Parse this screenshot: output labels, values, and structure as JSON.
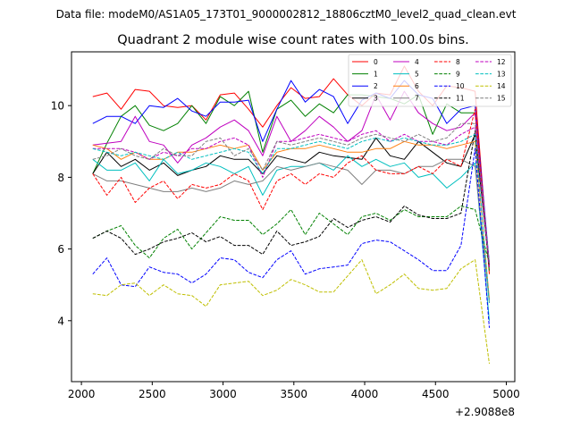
{
  "chart_data": {
    "type": "line",
    "suptitle": "Data file: modeM0/AS1A05_173T01_9000002812_18806cztM0_level2_quad_clean.evt",
    "title": "Quadrant 2 module wise count rates with 100.0s bins.",
    "xlabel": "",
    "ylabel": "",
    "x_offset_label": "+2.9088e8",
    "xlim": [
      1930,
      5060
    ],
    "ylim": [
      2.3,
      11.5
    ],
    "x_ticks": [
      2000,
      2500,
      3000,
      3500,
      4000,
      4500,
      5000
    ],
    "x_tick_labels": [
      "2000",
      "2500",
      "3000",
      "3500",
      "4000",
      "4500",
      "5000"
    ],
    "y_ticks": [
      4,
      6,
      8,
      10
    ],
    "y_tick_labels": [
      "4",
      "6",
      "8",
      "10"
    ],
    "grid": false,
    "legend_placement": "top-right",
    "x": [
      2080,
      2180,
      2280,
      2380,
      2480,
      2580,
      2680,
      2780,
      2880,
      2980,
      3080,
      3180,
      3280,
      3380,
      3480,
      3580,
      3680,
      3780,
      3880,
      3980,
      4080,
      4180,
      4280,
      4380,
      4480,
      4580,
      4680,
      4780,
      4880
    ],
    "series": [
      {
        "name": "0",
        "color": "#ff0000",
        "dash": "solid",
        "values": [
          10.25,
          10.35,
          9.9,
          10.45,
          10.4,
          10.0,
          9.95,
          10.0,
          9.6,
          10.3,
          10.35,
          9.9,
          9.4,
          10.0,
          10.5,
          10.2,
          10.25,
          10.75,
          10.3,
          10.0,
          10.35,
          10.3,
          11.1,
          10.4,
          10.0,
          10.55,
          10.5,
          10.4,
          5.3
        ]
      },
      {
        "name": "1",
        "color": "#008000",
        "dash": "solid",
        "values": [
          8.1,
          8.95,
          9.7,
          10.0,
          9.45,
          9.3,
          9.5,
          10.0,
          9.5,
          10.25,
          10.0,
          10.4,
          8.7,
          9.9,
          10.15,
          9.7,
          10.05,
          9.8,
          10.3,
          10.3,
          10.25,
          10.2,
          10.05,
          10.3,
          9.2,
          10.05,
          9.8,
          9.8,
          5.4
        ]
      },
      {
        "name": "2",
        "color": "#0000ff",
        "dash": "solid",
        "values": [
          9.5,
          9.7,
          9.7,
          9.5,
          10.0,
          9.95,
          10.2,
          9.85,
          9.7,
          10.1,
          10.1,
          10.15,
          9.0,
          9.9,
          10.7,
          10.1,
          10.45,
          10.25,
          9.5,
          10.15,
          10.35,
          10.2,
          10.7,
          10.3,
          10.2,
          9.5,
          9.9,
          10.0,
          5.6
        ]
      },
      {
        "name": "3",
        "color": "#000000",
        "dash": "solid",
        "values": [
          8.1,
          8.7,
          8.3,
          8.5,
          8.2,
          8.4,
          8.05,
          8.2,
          8.3,
          8.6,
          8.5,
          8.5,
          8.1,
          8.6,
          8.5,
          8.4,
          8.7,
          8.6,
          8.55,
          8.5,
          9.1,
          8.6,
          8.5,
          9.0,
          8.7,
          8.4,
          8.3,
          9.2,
          5.5
        ]
      },
      {
        "name": "4",
        "color": "#bf00bf",
        "dash": "solid",
        "values": [
          8.9,
          8.95,
          9.0,
          9.7,
          9.0,
          8.9,
          8.4,
          8.9,
          9.1,
          9.4,
          9.6,
          9.3,
          8.6,
          9.7,
          9.0,
          9.3,
          9.7,
          9.4,
          9.0,
          9.3,
          10.3,
          9.6,
          10.4,
          9.8,
          9.5,
          9.3,
          9.4,
          9.8,
          5.5
        ]
      },
      {
        "name": "5",
        "color": "#00bfbf",
        "dash": "solid",
        "values": [
          8.5,
          8.2,
          8.2,
          8.4,
          7.9,
          8.5,
          8.1,
          8.2,
          8.4,
          8.3,
          8.1,
          8.3,
          7.5,
          8.2,
          8.3,
          8.3,
          8.4,
          8.2,
          8.6,
          8.3,
          8.5,
          8.3,
          8.4,
          8.0,
          8.1,
          7.7,
          8.0,
          8.4,
          4.0
        ]
      },
      {
        "name": "6",
        "color": "#ff7f0e",
        "dash": "solid",
        "values": [
          8.9,
          8.8,
          8.5,
          8.7,
          8.5,
          8.5,
          8.7,
          8.7,
          8.8,
          8.9,
          8.8,
          8.9,
          8.2,
          8.7,
          8.8,
          8.8,
          8.9,
          8.8,
          8.7,
          8.7,
          8.8,
          8.8,
          9.0,
          8.9,
          8.9,
          8.8,
          8.9,
          9.0,
          4.6
        ]
      },
      {
        "name": "7",
        "color": "#7f7f7f",
        "dash": "solid",
        "values": [
          8.1,
          7.9,
          7.9,
          7.8,
          7.7,
          7.6,
          7.6,
          7.7,
          7.6,
          7.7,
          7.9,
          7.8,
          7.9,
          8.3,
          8.2,
          8.3,
          8.4,
          8.3,
          8.2,
          7.8,
          8.2,
          8.2,
          8.1,
          8.3,
          8.3,
          8.5,
          8.5,
          8.3,
          4.5
        ]
      },
      {
        "name": "8",
        "color": "#ff0000",
        "dash": "dashed",
        "values": [
          8.1,
          7.5,
          8.0,
          7.3,
          7.7,
          7.9,
          7.4,
          7.8,
          7.7,
          7.8,
          8.1,
          7.9,
          7.1,
          7.9,
          8.1,
          7.8,
          8.1,
          8.0,
          8.4,
          8.6,
          8.2,
          8.1,
          8.1,
          8.3,
          8.1,
          8.5,
          8.3,
          9.9,
          5.5
        ]
      },
      {
        "name": "9",
        "color": "#008000",
        "dash": "dashed",
        "values": [
          6.3,
          6.5,
          6.65,
          6.1,
          5.75,
          6.3,
          6.55,
          6.0,
          6.45,
          6.9,
          6.8,
          6.8,
          6.4,
          6.7,
          7.1,
          6.4,
          7.0,
          6.7,
          6.4,
          6.9,
          7.0,
          6.8,
          7.1,
          6.9,
          6.9,
          6.9,
          7.2,
          7.1,
          5.6
        ]
      },
      {
        "name": "10",
        "color": "#0000ff",
        "dash": "dashed",
        "values": [
          5.3,
          5.75,
          5.0,
          4.95,
          5.5,
          5.35,
          5.3,
          5.05,
          5.3,
          5.75,
          5.7,
          5.35,
          5.2,
          5.7,
          5.95,
          5.3,
          5.45,
          5.5,
          5.55,
          6.15,
          6.25,
          6.2,
          5.95,
          5.7,
          5.4,
          5.4,
          6.1,
          8.8,
          3.8
        ]
      },
      {
        "name": "11",
        "color": "#000000",
        "dash": "dashed",
        "values": [
          6.3,
          6.5,
          6.3,
          5.85,
          6.0,
          6.2,
          6.3,
          6.45,
          6.2,
          6.35,
          6.1,
          6.1,
          5.85,
          6.5,
          6.1,
          6.2,
          6.35,
          6.85,
          6.6,
          6.8,
          6.9,
          6.75,
          7.2,
          6.95,
          6.85,
          6.85,
          7.0,
          9.3,
          5.5
        ]
      },
      {
        "name": "12",
        "color": "#bf00bf",
        "dash": "dashed",
        "values": [
          8.8,
          8.8,
          8.8,
          8.7,
          8.5,
          8.7,
          8.6,
          8.8,
          8.8,
          9.0,
          9.1,
          8.9,
          8.0,
          9.0,
          9.0,
          9.1,
          9.2,
          9.1,
          9.0,
          9.2,
          9.3,
          9.0,
          9.2,
          9.0,
          9.0,
          8.9,
          9.2,
          9.4,
          5.5
        ]
      },
      {
        "name": "13",
        "color": "#00bfbf",
        "dash": "dashed",
        "values": [
          8.8,
          8.7,
          8.6,
          8.7,
          8.6,
          8.5,
          8.7,
          8.5,
          8.6,
          8.7,
          8.8,
          8.7,
          8.1,
          8.8,
          8.8,
          8.9,
          9.0,
          8.9,
          8.8,
          9.0,
          9.1,
          9.0,
          9.1,
          9.0,
          8.9,
          8.9,
          9.0,
          9.2,
          4.5
        ]
      },
      {
        "name": "14",
        "color": "#bfbf00",
        "dash": "dashed",
        "values": [
          4.75,
          4.7,
          5.0,
          5.05,
          4.7,
          5.0,
          4.75,
          4.7,
          4.4,
          5.0,
          5.05,
          5.1,
          4.7,
          4.85,
          5.15,
          5.0,
          4.8,
          4.8,
          5.25,
          5.7,
          4.75,
          5.0,
          5.3,
          4.9,
          4.85,
          4.9,
          5.45,
          5.7,
          2.8
        ]
      },
      {
        "name": "15",
        "color": "#7f7f7f",
        "dash": "dashed",
        "values": [
          8.5,
          8.6,
          8.8,
          8.6,
          8.5,
          8.8,
          8.6,
          8.6,
          9.0,
          9.1,
          8.6,
          8.8,
          8.2,
          9.0,
          8.9,
          9.0,
          9.1,
          9.0,
          8.9,
          9.1,
          9.2,
          9.1,
          9.0,
          9.2,
          9.0,
          9.1,
          9.5,
          9.5,
          5.6
        ]
      }
    ]
  }
}
